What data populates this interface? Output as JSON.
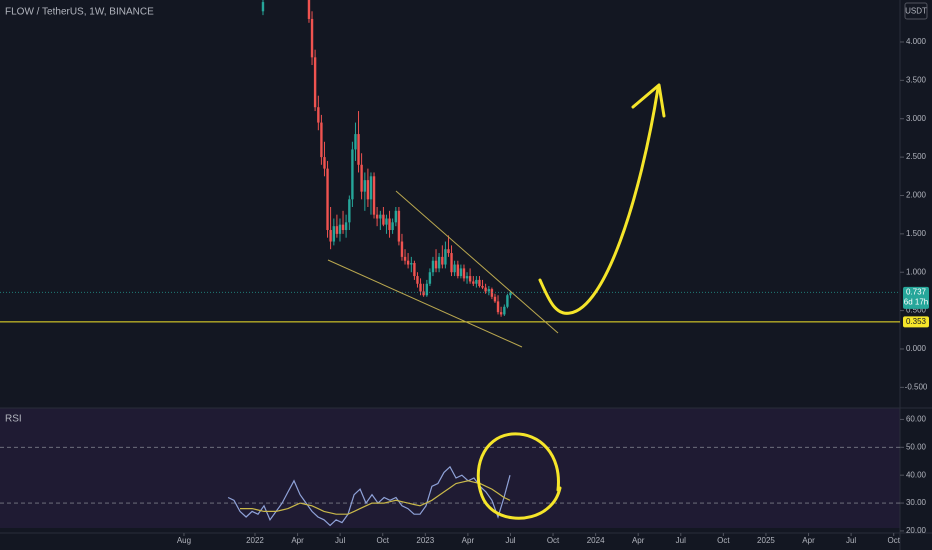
{
  "chart_data": [
    {
      "type": "candlestick",
      "title": "FLOW / TetherUS, 1W, BINANCE",
      "currency": "USDT",
      "x": [
        2022.047,
        2022.317,
        2022.335,
        2022.353,
        2022.372,
        2022.39,
        2022.408,
        2022.426,
        2022.444,
        2022.463,
        2022.481,
        2022.499,
        2022.517,
        2022.535,
        2022.554,
        2022.572,
        2022.59,
        2022.608,
        2022.626,
        2022.645,
        2022.663,
        2022.681,
        2022.699,
        2022.717,
        2022.736,
        2022.754,
        2022.772,
        2022.79,
        2022.808,
        2022.827,
        2022.845,
        2022.863,
        2022.881,
        2022.899,
        2022.918,
        2022.936,
        2022.954,
        2022.972,
        2022.99,
        2023.009,
        2023.027,
        2023.045,
        2023.063,
        2023.081,
        2023.1,
        2023.118,
        2023.136,
        2023.154,
        2023.172,
        2023.191,
        2023.209,
        2023.227,
        2023.245,
        2023.263,
        2023.282,
        2023.3,
        2023.318,
        2023.336,
        2023.354,
        2023.373,
        2023.391,
        2023.409,
        2023.427,
        2023.445,
        2023.464,
        2023.482,
        2023.5
      ],
      "open": [
        4.4,
        4.55,
        4.3,
        3.8,
        3.15,
        2.95,
        2.5,
        2.35,
        1.55,
        1.4,
        1.6,
        1.5,
        1.62,
        1.55,
        1.65,
        1.95,
        2.6,
        2.8,
        2.4,
        2.05,
        2.2,
        1.95,
        2.25,
        1.75,
        1.7,
        1.75,
        1.62,
        1.7,
        1.55,
        1.65,
        1.8,
        1.4,
        1.2,
        1.15,
        1.1,
        1.12,
        0.95,
        0.85,
        0.75,
        0.7,
        0.85,
        1.0,
        1.15,
        1.05,
        1.2,
        1.1,
        1.3,
        1.25,
        1.0,
        1.1,
        0.95,
        1.05,
        0.92,
        0.95,
        0.88,
        0.85,
        0.9,
        0.82,
        0.8,
        0.75,
        0.78,
        0.68,
        0.62,
        0.48,
        0.45,
        0.55,
        0.7
      ],
      "high": [
        4.55,
        4.55,
        4.4,
        3.9,
        3.3,
        3.05,
        2.7,
        2.45,
        1.85,
        1.7,
        1.75,
        1.7,
        1.8,
        1.75,
        2.0,
        2.7,
        2.95,
        3.1,
        2.55,
        2.3,
        2.35,
        2.3,
        2.3,
        1.85,
        1.8,
        1.85,
        1.75,
        1.8,
        1.7,
        1.85,
        1.85,
        1.5,
        1.3,
        1.25,
        1.2,
        1.15,
        1.0,
        0.92,
        0.85,
        0.9,
        1.05,
        1.2,
        1.3,
        1.25,
        1.35,
        1.4,
        1.48,
        1.35,
        1.15,
        1.15,
        1.1,
        1.1,
        1.0,
        1.05,
        0.95,
        0.95,
        0.95,
        0.9,
        0.85,
        0.82,
        0.8,
        0.72,
        0.7,
        0.55,
        0.58,
        0.72,
        0.76
      ],
      "low": [
        4.35,
        4.25,
        3.7,
        3.1,
        2.85,
        2.4,
        2.25,
        1.45,
        1.3,
        1.35,
        1.45,
        1.4,
        1.5,
        1.45,
        1.55,
        1.85,
        2.45,
        2.3,
        1.95,
        1.8,
        1.85,
        1.75,
        1.7,
        1.6,
        1.55,
        1.6,
        1.5,
        1.45,
        1.5,
        1.6,
        1.35,
        1.15,
        1.1,
        1.05,
        1.0,
        0.9,
        0.8,
        0.7,
        0.68,
        0.68,
        0.82,
        0.95,
        1.0,
        1.0,
        1.05,
        1.05,
        1.2,
        0.95,
        0.95,
        0.92,
        0.92,
        0.88,
        0.85,
        0.85,
        0.82,
        0.8,
        0.8,
        0.78,
        0.72,
        0.7,
        0.65,
        0.6,
        0.45,
        0.42,
        0.43,
        0.53,
        0.66
      ],
      "close": [
        4.52,
        4.3,
        3.8,
        3.15,
        2.95,
        2.5,
        2.35,
        1.55,
        1.4,
        1.6,
        1.5,
        1.62,
        1.55,
        1.65,
        1.95,
        2.6,
        2.8,
        2.4,
        2.05,
        2.2,
        1.95,
        2.25,
        1.75,
        1.7,
        1.75,
        1.62,
        1.7,
        1.55,
        1.65,
        1.8,
        1.4,
        1.2,
        1.15,
        1.1,
        1.12,
        0.95,
        0.85,
        0.75,
        0.7,
        0.85,
        1.0,
        1.15,
        1.05,
        1.2,
        1.1,
        1.3,
        1.25,
        1.0,
        1.1,
        0.95,
        1.05,
        0.92,
        0.95,
        0.88,
        0.85,
        0.9,
        0.82,
        0.8,
        0.75,
        0.78,
        0.68,
        0.62,
        0.48,
        0.45,
        0.55,
        0.7,
        0.737
      ],
      "up_color": "#26a69a",
      "down_color": "#ef5350",
      "xlim": [
        2020.503,
        2025.787
      ],
      "ylim": [
        -0.769,
        4.547
      ],
      "xticks": [
        {
          "value": 2021.583,
          "label": "Aug"
        },
        2022,
        {
          "value": 2022.25,
          "label": "Apr"
        },
        {
          "value": 2022.5,
          "label": "Jul"
        },
        {
          "value": 2022.75,
          "label": "Oct"
        },
        2023,
        {
          "value": 2023.25,
          "label": "Apr"
        },
        {
          "value": 2023.5,
          "label": "Jul"
        },
        {
          "value": 2023.75,
          "label": "Oct"
        },
        2024,
        {
          "value": 2024.25,
          "label": "Apr"
        },
        {
          "value": 2024.5,
          "label": "Jul"
        },
        {
          "value": 2024.75,
          "label": "Oct"
        },
        2025,
        {
          "value": 2025.25,
          "label": "Apr"
        },
        {
          "value": 2025.5,
          "label": "Jul"
        },
        {
          "value": 2025.75,
          "label": "Oct"
        }
      ],
      "yticks": [
        {
          "value": 4,
          "label": "4.000"
        },
        {
          "value": 3.5,
          "label": "3.500"
        },
        {
          "value": 3,
          "label": "3.000"
        },
        {
          "value": 2.5,
          "label": "2.500"
        },
        {
          "value": 2,
          "label": "2.000"
        },
        {
          "value": 1.5,
          "label": "1.500"
        },
        {
          "value": 1,
          "label": "1.000"
        },
        {
          "value": 0.5,
          "label": "0.500"
        },
        {
          "value": 0,
          "label": "0.000"
        },
        {
          "value": -0.5,
          "label": "-0.500"
        }
      ],
      "price_lines": [
        {
          "value": 0.737,
          "label": "0.737",
          "sublabel": "6d 17h",
          "color": "#26a69a"
        },
        {
          "value": 0.353,
          "label": "0.353",
          "color": "#f5e52a"
        }
      ]
    },
    {
      "type": "line",
      "title": "RSI",
      "x": [
        2021.842,
        2021.877,
        2021.912,
        2021.948,
        2021.983,
        2022.018,
        2022.053,
        2022.088,
        2022.124,
        2022.159,
        2022.194,
        2022.229,
        2022.265,
        2022.3,
        2022.335,
        2022.37,
        2022.405,
        2022.441,
        2022.476,
        2022.511,
        2022.546,
        2022.582,
        2022.617,
        2022.652,
        2022.687,
        2022.722,
        2022.758,
        2022.793,
        2022.828,
        2022.863,
        2022.898,
        2022.934,
        2022.969,
        2023.004,
        2023.039,
        2023.074,
        2023.11,
        2023.145,
        2023.18,
        2023.215,
        2023.251,
        2023.286,
        2023.321,
        2023.356,
        2023.391,
        2023.427,
        2023.462,
        2023.497
      ],
      "series": [
        {
          "color": "#8fa2d8",
          "values": [
            32,
            31,
            27,
            25,
            27,
            26,
            29,
            24,
            27,
            30,
            34,
            38,
            33,
            30,
            27,
            25,
            24,
            22,
            24,
            23,
            26,
            33,
            35,
            30,
            33,
            30,
            32,
            31,
            32,
            29,
            28,
            26,
            26,
            29,
            36,
            37,
            41,
            43,
            39,
            40,
            38,
            39,
            36,
            34,
            31,
            25,
            32,
            40
          ]
        },
        {
          "color": "#c9b84a",
          "values": [
            null,
            null,
            28,
            28,
            28,
            27.5,
            27,
            27,
            27,
            27.5,
            28,
            29,
            30,
            29.5,
            29,
            28,
            27,
            26.5,
            26,
            26,
            26,
            27,
            28,
            29,
            30,
            30,
            30,
            30.5,
            31,
            30.5,
            30,
            29.5,
            29,
            30,
            31,
            32.5,
            34,
            35.5,
            37,
            37.5,
            38,
            37.5,
            37,
            36,
            35,
            33.5,
            32,
            31
          ]
        }
      ],
      "xlim": [
        2020.503,
        2025.787
      ],
      "ylim": [
        19.26,
        64.1
      ],
      "yticks": [
        {
          "value": 60,
          "label": "60.00"
        },
        {
          "value": 50,
          "label": "50.00"
        },
        {
          "value": 40,
          "label": "40.00"
        },
        {
          "value": 30,
          "label": "30.00"
        },
        {
          "value": 20,
          "label": "20.00"
        }
      ],
      "levels": [
        50,
        30
      ]
    }
  ]
}
